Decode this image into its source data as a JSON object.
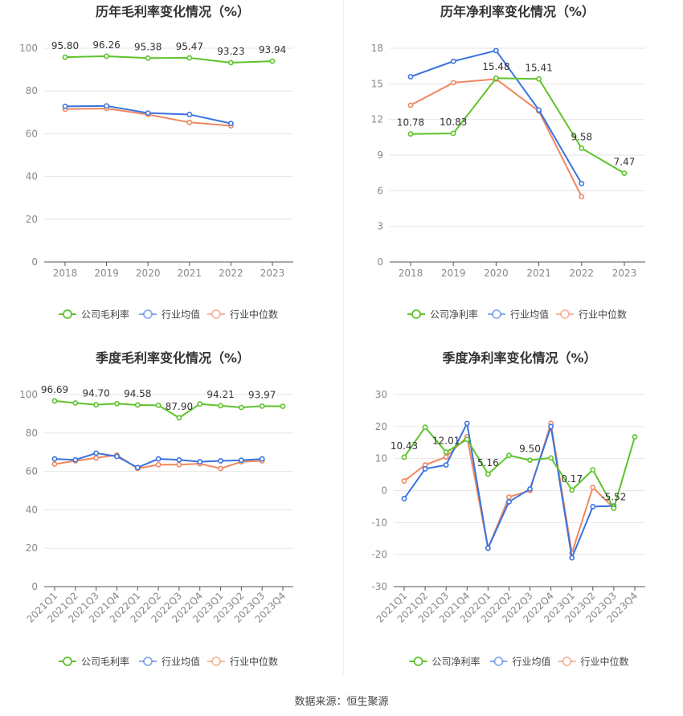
{
  "colors": {
    "company": "#5ec32c",
    "avg": "#3a73e0",
    "median": "#f0875f",
    "grid": "#e6e6e6",
    "axis": "#888888",
    "text": "#333333"
  },
  "source_label": "数据来源：恒生聚源",
  "chart_data": [
    {
      "type": "line",
      "title": "历年毛利率变化情况（%）",
      "categories": [
        "2018",
        "2019",
        "2020",
        "2021",
        "2022",
        "2023"
      ],
      "ylim": [
        0,
        100
      ],
      "yticks": [
        0,
        20,
        40,
        60,
        80,
        100
      ],
      "rotate_x": false,
      "series": [
        {
          "name": "公司毛利率",
          "key": "company",
          "values": [
            95.8,
            96.26,
            95.38,
            95.47,
            93.23,
            93.94
          ],
          "labels": [
            "95.80",
            "96.26",
            "95.38",
            "95.47",
            "93.23",
            "93.94"
          ]
        },
        {
          "name": "行业均值",
          "key": "avg",
          "values": [
            72.8,
            73.0,
            69.7,
            69.0,
            64.8,
            null
          ]
        },
        {
          "name": "行业中位数",
          "key": "median",
          "values": [
            71.5,
            71.8,
            69.0,
            65.3,
            63.7,
            null
          ]
        }
      ],
      "legend": [
        "公司毛利率",
        "行业均值",
        "行业中位数"
      ]
    },
    {
      "type": "line",
      "title": "历年净利率变化情况（%）",
      "categories": [
        "2018",
        "2019",
        "2020",
        "2021",
        "2022",
        "2023"
      ],
      "ylim": [
        0,
        18
      ],
      "yticks": [
        0,
        3,
        6,
        9,
        12,
        15,
        18
      ],
      "rotate_x": false,
      "series": [
        {
          "name": "公司净利率",
          "key": "company",
          "values": [
            10.78,
            10.83,
            15.48,
            15.41,
            9.58,
            7.47
          ],
          "labels": [
            "10.78",
            "10.83",
            "15.48",
            "15.41",
            "9.58",
            "7.47"
          ]
        },
        {
          "name": "行业均值",
          "key": "avg",
          "values": [
            15.6,
            16.9,
            17.8,
            12.8,
            6.6,
            null
          ]
        },
        {
          "name": "行业中位数",
          "key": "median",
          "values": [
            13.2,
            15.1,
            15.4,
            12.7,
            5.5,
            null
          ]
        }
      ],
      "legend": [
        "公司净利率",
        "行业均值",
        "行业中位数"
      ]
    },
    {
      "type": "line",
      "title": "季度毛利率变化情况（%）",
      "categories": [
        "2021Q1",
        "2021Q2",
        "2021Q3",
        "2021Q4",
        "2022Q1",
        "2022Q2",
        "2022Q3",
        "2022Q4",
        "2023Q1",
        "2023Q2",
        "2023Q3",
        "2023Q4"
      ],
      "ylim": [
        0,
        100
      ],
      "yticks": [
        0,
        20,
        40,
        60,
        80,
        100
      ],
      "rotate_x": true,
      "series": [
        {
          "name": "公司毛利率",
          "key": "company",
          "values": [
            96.69,
            95.6,
            94.7,
            95.3,
            94.58,
            94.4,
            87.9,
            95.1,
            94.21,
            93.3,
            93.97,
            93.9
          ],
          "labels": [
            "96.69",
            "",
            "94.70",
            "",
            "94.58",
            "",
            "87.90",
            "",
            "94.21",
            "",
            "93.97",
            ""
          ]
        },
        {
          "name": "行业均值",
          "key": "avg",
          "values": [
            66.5,
            66.0,
            69.5,
            67.8,
            62.0,
            66.5,
            66.0,
            65.0,
            65.5,
            65.8,
            66.5,
            null
          ]
        },
        {
          "name": "行业中位数",
          "key": "median",
          "values": [
            63.8,
            65.5,
            67.0,
            68.5,
            61.5,
            63.5,
            63.5,
            64.0,
            61.5,
            65.0,
            65.5,
            null
          ]
        }
      ],
      "legend": [
        "公司毛利率",
        "行业均值",
        "行业中位数"
      ]
    },
    {
      "type": "line",
      "title": "季度净利率变化情况（%）",
      "categories": [
        "2021Q1",
        "2021Q2",
        "2021Q3",
        "2021Q4",
        "2022Q1",
        "2022Q2",
        "2022Q3",
        "2022Q4",
        "2023Q1",
        "2023Q2",
        "2023Q3",
        "2023Q4"
      ],
      "ylim": [
        -30,
        30
      ],
      "yticks": [
        -30,
        -20,
        -10,
        0,
        10,
        20,
        30
      ],
      "rotate_x": true,
      "series": [
        {
          "name": "公司净利率",
          "key": "company",
          "values": [
            10.43,
            19.8,
            12.01,
            16.0,
            5.16,
            11.0,
            9.5,
            10.2,
            0.17,
            6.5,
            -5.52,
            16.8
          ],
          "labels": [
            "10.43",
            "",
            "12.01",
            "",
            "5.16",
            "",
            "9.50",
            "",
            "0.17",
            "",
            "-5.52",
            ""
          ]
        },
        {
          "name": "行业均值",
          "key": "avg",
          "values": [
            -2.5,
            6.8,
            8.0,
            21.0,
            -18.0,
            -3.5,
            0.5,
            20.0,
            -21.0,
            -5.0,
            -4.8,
            null
          ]
        },
        {
          "name": "行业中位数",
          "key": "median",
          "values": [
            3.0,
            8.0,
            10.5,
            16.8,
            -18.0,
            -2.0,
            0.0,
            21.0,
            -19.5,
            1.0,
            -5.5,
            null
          ]
        }
      ],
      "legend": [
        "公司净利率",
        "行业均值",
        "行业中位数"
      ]
    }
  ]
}
